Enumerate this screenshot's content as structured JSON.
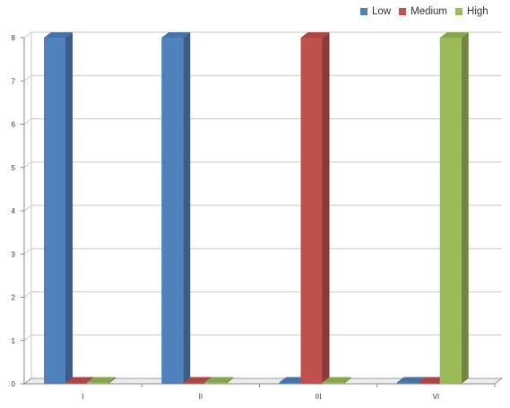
{
  "chart_data": {
    "type": "bar",
    "categories": [
      "I",
      "II",
      "III",
      "VI"
    ],
    "series": [
      {
        "name": "Low",
        "values": [
          8,
          8,
          0,
          0
        ]
      },
      {
        "name": "Medium",
        "values": [
          0,
          0,
          8,
          0
        ]
      },
      {
        "name": "High",
        "values": [
          0,
          0,
          0,
          8
        ]
      }
    ],
    "yticks": [
      0,
      1,
      2,
      3,
      4,
      5,
      6,
      7,
      8
    ],
    "ylim": [
      0,
      8
    ],
    "grid": true,
    "legend_position": "top-right",
    "style": "3d-column"
  },
  "colors": {
    "Low": "#4f81bd",
    "Medium": "#c0504d",
    "High": "#9bbb59",
    "grid": "#c9c9c9",
    "axis": "#888888"
  }
}
